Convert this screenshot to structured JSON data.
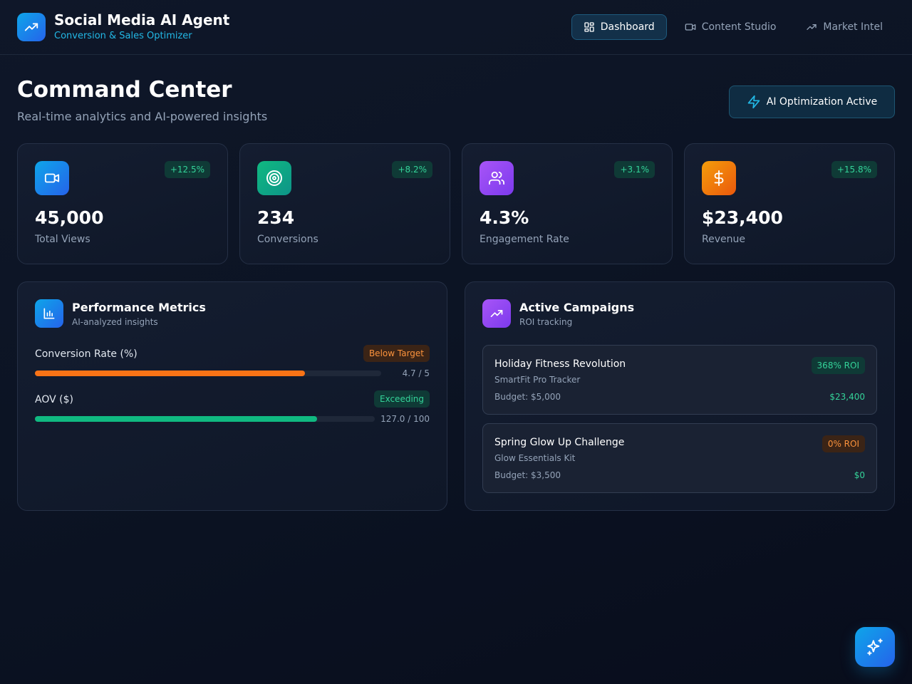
{
  "app": {
    "title": "Social Media AI Agent",
    "subtitle": "Conversion & Sales Optimizer",
    "logo_icon": "trending-up-icon"
  },
  "nav": {
    "items": [
      {
        "label": "Dashboard",
        "icon": "grid-icon",
        "active": true
      },
      {
        "label": "Content Studio",
        "icon": "video-icon",
        "active": false
      },
      {
        "label": "Market Intel",
        "icon": "trending-up-icon",
        "active": false
      }
    ]
  },
  "page": {
    "title": "Command Center",
    "subtitle": "Real-time analytics and AI-powered insights",
    "ai_badge": "AI Optimization Active"
  },
  "stats": [
    {
      "value": "45,000",
      "label": "Total Views",
      "change": "+12.5%",
      "icon": "video-icon",
      "color": "#1d8fe0"
    },
    {
      "value": "234",
      "label": "Conversions",
      "change": "+8.2%",
      "icon": "target-icon",
      "color": "#10a37f"
    },
    {
      "value": "4.3%",
      "label": "Engagement Rate",
      "change": "+3.1%",
      "icon": "users-icon",
      "color": "#8b45f0"
    },
    {
      "value": "$23,400",
      "label": "Revenue",
      "change": "+15.8%",
      "icon": "dollar-icon",
      "color": "#f07a12"
    }
  ],
  "performance": {
    "title": "Performance Metrics",
    "subtitle": "AI-analyzed insights",
    "metrics": [
      {
        "label": "Conversion Rate (%)",
        "status": "Below Target",
        "value": "4.7 / 5",
        "progress": 0.78,
        "color": "#f97316"
      },
      {
        "label": "AOV ($)",
        "status": "Exceeding",
        "value": "127.0 / 100",
        "progress": 0.83,
        "color": "#10b981"
      }
    ]
  },
  "campaigns": {
    "title": "Active Campaigns",
    "subtitle": "ROI tracking",
    "items": [
      {
        "name": "Holiday Fitness Revolution",
        "product": "SmartFit Pro Tracker",
        "budget": "Budget: $5,000",
        "roi": "368% ROI",
        "revenue": "$23,400"
      },
      {
        "name": "Spring Glow Up Challenge",
        "product": "Glow Essentials Kit",
        "budget": "Budget: $3,500",
        "roi": "0% ROI",
        "revenue": "$0"
      }
    ]
  },
  "colors": {
    "accent": "#0ea5e9",
    "success": "#34d399",
    "warning": "#fb923c",
    "background": "#0c1424"
  }
}
